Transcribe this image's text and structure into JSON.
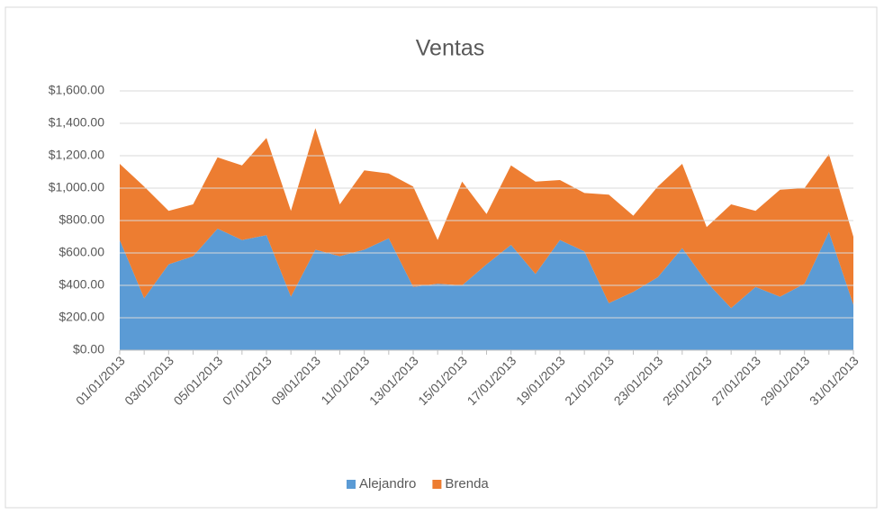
{
  "chart_data": {
    "type": "stacked_area",
    "title": "Ventas",
    "categories": [
      "01/01/2013",
      null,
      "03/01/2013",
      null,
      "05/01/2013",
      null,
      "07/01/2013",
      null,
      "09/01/2013",
      null,
      "11/01/2013",
      null,
      "13/01/2013",
      null,
      "15/01/2013",
      null,
      "17/01/2013",
      null,
      "19/01/2013",
      null,
      "21/01/2013",
      null,
      "23/01/2013",
      null,
      "25/01/2013",
      null,
      "27/01/2013",
      null,
      "29/01/2013",
      null,
      "31/01/2013"
    ],
    "series": [
      {
        "name": "Alejandro",
        "color": "#5b9bd5",
        "values": [
          680,
          320,
          530,
          580,
          750,
          680,
          710,
          330,
          620,
          580,
          620,
          690,
          390,
          410,
          400,
          530,
          650,
          470,
          680,
          610,
          290,
          360,
          450,
          630,
          420,
          260,
          390,
          330,
          410,
          730,
          280
        ]
      },
      {
        "name": "Brenda",
        "color": "#ed7d31",
        "values": [
          470,
          690,
          330,
          320,
          440,
          460,
          600,
          530,
          750,
          320,
          490,
          400,
          620,
          270,
          640,
          310,
          490,
          570,
          370,
          360,
          670,
          470,
          560,
          520,
          340,
          640,
          470,
          660,
          590,
          480,
          420
        ]
      }
    ],
    "ylim": [
      0,
      1600
    ],
    "yticks": [
      {
        "value": 0,
        "label": "$0.00"
      },
      {
        "value": 200,
        "label": "$200.00"
      },
      {
        "value": 400,
        "label": "$400.00"
      },
      {
        "value": 600,
        "label": "$600.00"
      },
      {
        "value": 800,
        "label": "$800.00"
      },
      {
        "value": 1000,
        "label": "$1,000.00"
      },
      {
        "value": 1200,
        "label": "$1,200.00"
      },
      {
        "value": 1400,
        "label": "$1,400.00"
      },
      {
        "value": 1600,
        "label": "$1,600.00"
      }
    ],
    "grid": true,
    "legend": "bottom"
  }
}
